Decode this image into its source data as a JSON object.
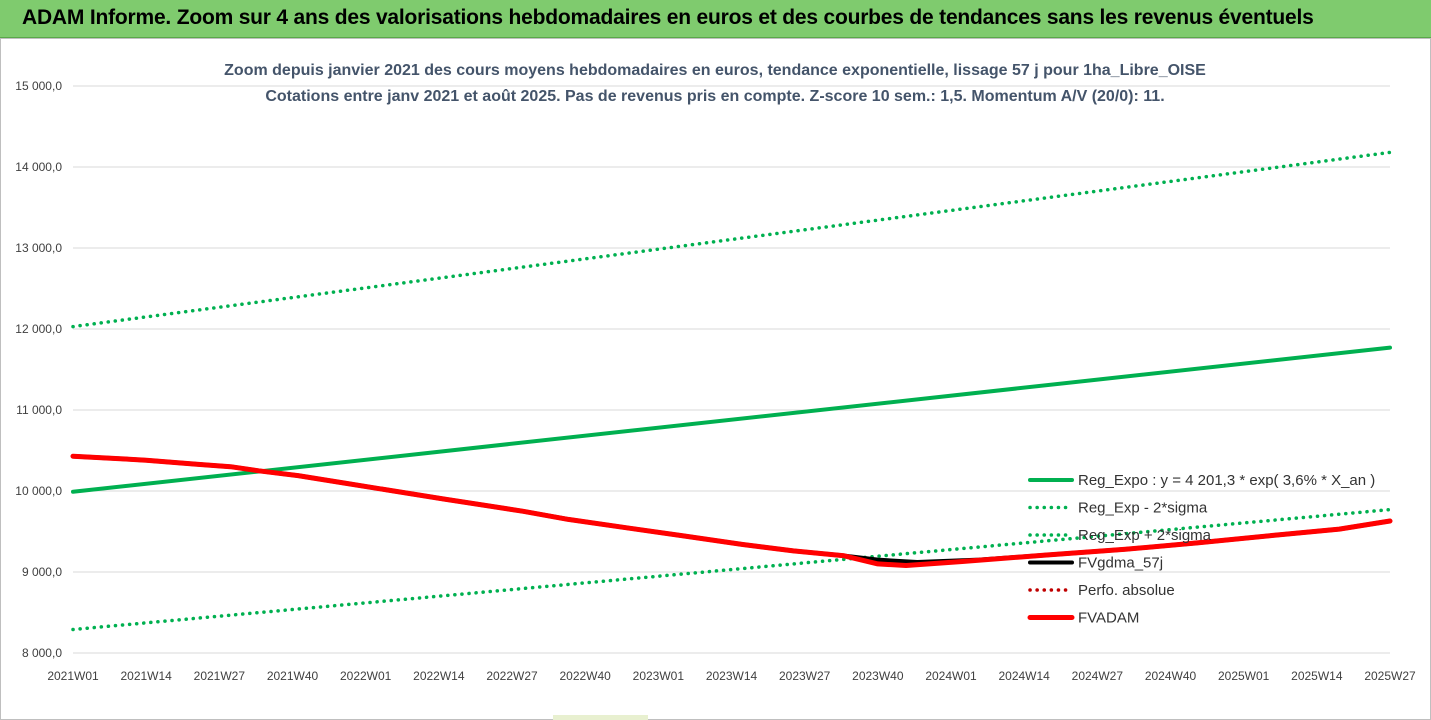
{
  "header": {
    "title": "ADAM Informe. Zoom sur 4 ans des valorisations hebdomadaires en euros et des courbes de tendances sans les revenus éventuels"
  },
  "colors": {
    "header_bg": "#7fcb6e",
    "trend": "#00b050",
    "adam": "#ff0000",
    "fvgdma": "#000000",
    "perfo": "#c00000"
  },
  "chart_data": {
    "type": "line",
    "title": "Zoom depuis janvier 2021 des cours moyens hebdomadaires en euros, tendance exponentielle, lissage 57 j pour 1ha_Libre_OISE",
    "subtitle": "Cotations entre janv 2021 et août 2025. Pas de revenus pris en compte. Z-score 10 sem.: 1,5. Momentum A/V (20/0): 11.",
    "xlabel": "",
    "ylabel": "",
    "x_ticks": [
      "2021W01",
      "2021W14",
      "2021W27",
      "2021W40",
      "2022W01",
      "2022W14",
      "2022W27",
      "2022W40",
      "2023W01",
      "2023W14",
      "2023W27",
      "2023W40",
      "2024W01",
      "2024W14",
      "2024W27",
      "2024W40",
      "2025W01",
      "2025W14",
      "2025W27"
    ],
    "y_ticks": [
      "8 000,0",
      "9 000,0",
      "10 000,0",
      "11 000,0",
      "12 000,0",
      "13 000,0",
      "14 000,0",
      "15 000,0"
    ],
    "ylim": [
      8000,
      15000
    ],
    "x_index_range": [
      0,
      234
    ],
    "grid": "horizontal",
    "legend_position": "right",
    "series": [
      {
        "name": "Reg_Expo : y = 4 201,3 * exp( 3,6% *  X_an )",
        "style": "solid",
        "color": "#00b050",
        "points": [
          [
            0,
            9990
          ],
          [
            234,
            11770
          ]
        ]
      },
      {
        "name": "Reg_Exp - 2*sigma",
        "style": "dotted",
        "color": "#00b050",
        "points": [
          [
            0,
            8290
          ],
          [
            234,
            9770
          ]
        ]
      },
      {
        "name": "Reg_Exp + 2*sigma",
        "style": "dotted",
        "color": "#00b050",
        "points": [
          [
            0,
            12030
          ],
          [
            234,
            14180
          ]
        ]
      },
      {
        "name": "FVgdma_57j",
        "style": "solid",
        "color": "#000000",
        "points": [
          [
            0,
            10430
          ],
          [
            8,
            10400
          ],
          [
            13,
            10380
          ],
          [
            22,
            10330
          ],
          [
            28,
            10300
          ],
          [
            33,
            10250
          ],
          [
            40,
            10190
          ],
          [
            48,
            10100
          ],
          [
            57,
            10000
          ],
          [
            66,
            9900
          ],
          [
            80,
            9750
          ],
          [
            88,
            9650
          ],
          [
            99,
            9540
          ],
          [
            108,
            9450
          ],
          [
            119,
            9340
          ],
          [
            128,
            9260
          ],
          [
            137,
            9200
          ],
          [
            143,
            9150
          ],
          [
            150,
            9120
          ],
          [
            161,
            9150
          ],
          [
            173,
            9210
          ],
          [
            187,
            9280
          ],
          [
            200,
            9360
          ],
          [
            213,
            9450
          ],
          [
            225,
            9530
          ],
          [
            234,
            9630
          ]
        ]
      },
      {
        "name": "Perfo. absolue",
        "style": "dotted",
        "color": "#c00000",
        "points": [
          [
            0,
            10430
          ],
          [
            8,
            10400
          ],
          [
            13,
            10380
          ],
          [
            22,
            10330
          ],
          [
            28,
            10300
          ],
          [
            33,
            10250
          ],
          [
            40,
            10190
          ],
          [
            48,
            10100
          ],
          [
            57,
            10000
          ],
          [
            66,
            9900
          ],
          [
            80,
            9750
          ],
          [
            88,
            9650
          ],
          [
            99,
            9540
          ],
          [
            108,
            9450
          ],
          [
            119,
            9340
          ],
          [
            128,
            9260
          ],
          [
            137,
            9200
          ],
          [
            143,
            9100
          ],
          [
            148,
            9080
          ],
          [
            158,
            9130
          ],
          [
            173,
            9210
          ],
          [
            187,
            9280
          ],
          [
            200,
            9360
          ],
          [
            213,
            9450
          ],
          [
            225,
            9530
          ],
          [
            234,
            9630
          ]
        ]
      },
      {
        "name": "FVADAM",
        "style": "solid",
        "color": "#ff0000",
        "points": [
          [
            0,
            10430
          ],
          [
            8,
            10400
          ],
          [
            13,
            10380
          ],
          [
            22,
            10330
          ],
          [
            28,
            10300
          ],
          [
            33,
            10250
          ],
          [
            40,
            10190
          ],
          [
            48,
            10100
          ],
          [
            57,
            10000
          ],
          [
            66,
            9900
          ],
          [
            80,
            9750
          ],
          [
            88,
            9650
          ],
          [
            99,
            9540
          ],
          [
            108,
            9450
          ],
          [
            119,
            9340
          ],
          [
            128,
            9260
          ],
          [
            137,
            9200
          ],
          [
            143,
            9100
          ],
          [
            148,
            9080
          ],
          [
            158,
            9130
          ],
          [
            173,
            9210
          ],
          [
            187,
            9280
          ],
          [
            200,
            9360
          ],
          [
            213,
            9450
          ],
          [
            225,
            9530
          ],
          [
            234,
            9630
          ]
        ]
      }
    ],
    "legend_order": [
      0,
      1,
      2,
      3,
      4,
      5
    ]
  }
}
